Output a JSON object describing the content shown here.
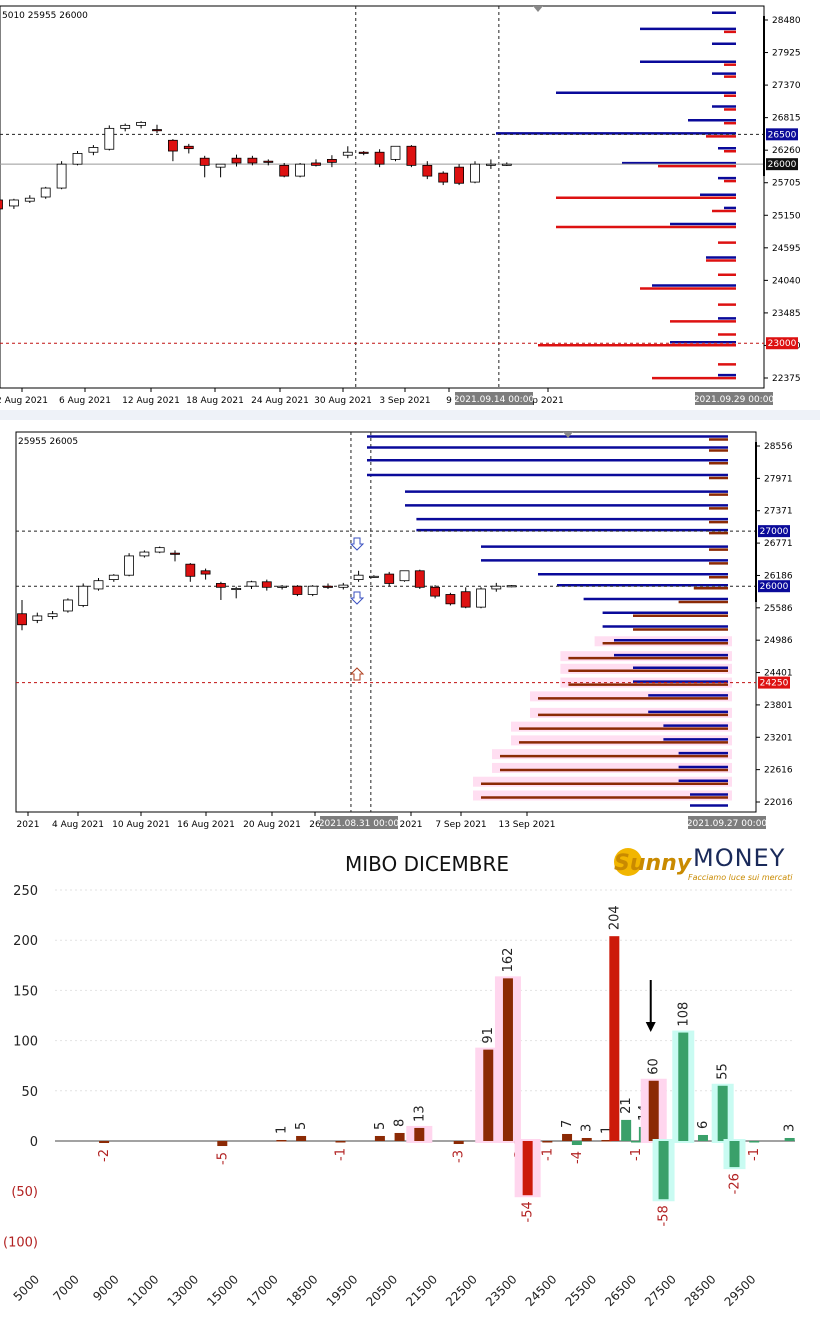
{
  "colors": {
    "bull_line": "#0a0a9a",
    "bear_line": "#dd1111",
    "candle_up": "#ffffff",
    "candle_down": "#dd1111",
    "put_bar": "#8b2a05",
    "put_bar_red": "#cc1a0a",
    "call_bar": "#3aa06a",
    "pink_glow": "#ffd6ee",
    "cyan_glow": "#c9fbf2",
    "neg_label": "#b22222",
    "axis_label_neg": "#b22222"
  },
  "chart_data": [
    {
      "type": "candlestick",
      "header": "5010 25955 26000",
      "price_ticks": [
        "28480",
        "27925",
        "27370",
        "26815",
        "26260",
        "25705",
        "25150",
        "24595",
        "24040",
        "23485",
        "22930",
        "22375"
      ],
      "price_range": [
        22250,
        28650
      ],
      "date_ticks": [
        "2 Aug 2021",
        "6 Aug 2021",
        "12 Aug 2021",
        "18 Aug 2021",
        "24 Aug 2021",
        "30 Aug 2021",
        "3 Sep 2021",
        "9",
        "p 2021"
      ],
      "date_badges": [
        "2021.09.14 00:00",
        "2021.09.29 00:00"
      ],
      "price_badges": [
        {
          "label": "26500",
          "price": 26500,
          "color": "#0a0a9a"
        },
        {
          "label": "26000",
          "price": 26000,
          "color": "#111111"
        },
        {
          "label": "23000",
          "price": 23000,
          "color": "#dd1111"
        }
      ],
      "candles": [
        {
          "o": 25400,
          "h": 25450,
          "l": 25200,
          "c": 25250
        },
        {
          "o": 25300,
          "h": 25420,
          "l": 25250,
          "c": 25400
        },
        {
          "o": 25380,
          "h": 25480,
          "l": 25350,
          "c": 25430
        },
        {
          "o": 25450,
          "h": 25620,
          "l": 25420,
          "c": 25600
        },
        {
          "o": 25600,
          "h": 26050,
          "l": 25580,
          "c": 26000
        },
        {
          "o": 26000,
          "h": 26220,
          "l": 25980,
          "c": 26180
        },
        {
          "o": 26200,
          "h": 26320,
          "l": 26150,
          "c": 26280
        },
        {
          "o": 26250,
          "h": 26650,
          "l": 26230,
          "c": 26600
        },
        {
          "o": 26600,
          "h": 26680,
          "l": 26550,
          "c": 26650
        },
        {
          "o": 26650,
          "h": 26720,
          "l": 26600,
          "c": 26700
        },
        {
          "o": 26580,
          "h": 26660,
          "l": 26520,
          "c": 26560
        },
        {
          "o": 26400,
          "h": 26420,
          "l": 26050,
          "c": 26220
        },
        {
          "o": 26300,
          "h": 26340,
          "l": 26180,
          "c": 26260
        },
        {
          "o": 26100,
          "h": 26140,
          "l": 25780,
          "c": 25980
        },
        {
          "o": 25950,
          "h": 26000,
          "l": 25780,
          "c": 26000
        },
        {
          "o": 26100,
          "h": 26160,
          "l": 25960,
          "c": 26020
        },
        {
          "o": 26100,
          "h": 26140,
          "l": 25980,
          "c": 26020
        },
        {
          "o": 26050,
          "h": 26080,
          "l": 25980,
          "c": 26030
        },
        {
          "o": 25980,
          "h": 26020,
          "l": 25780,
          "c": 25800
        },
        {
          "o": 25800,
          "h": 26020,
          "l": 25780,
          "c": 26000
        },
        {
          "o": 26020,
          "h": 26080,
          "l": 25960,
          "c": 25980
        },
        {
          "o": 26080,
          "h": 26150,
          "l": 25950,
          "c": 26030
        },
        {
          "o": 26150,
          "h": 26300,
          "l": 26100,
          "c": 26200
        },
        {
          "o": 26200,
          "h": 26220,
          "l": 26150,
          "c": 26180
        },
        {
          "o": 26200,
          "h": 26250,
          "l": 25950,
          "c": 26000
        },
        {
          "o": 26080,
          "h": 26300,
          "l": 26050,
          "c": 26300
        },
        {
          "o": 26300,
          "h": 26320,
          "l": 25950,
          "c": 25980
        },
        {
          "o": 25980,
          "h": 26050,
          "l": 25750,
          "c": 25800
        },
        {
          "o": 25850,
          "h": 25880,
          "l": 25650,
          "c": 25700
        },
        {
          "o": 25950,
          "h": 26000,
          "l": 25650,
          "c": 25680
        },
        {
          "o": 25700,
          "h": 26050,
          "l": 25680,
          "c": 26000
        },
        {
          "o": 25980,
          "h": 26080,
          "l": 25920,
          "c": 26000
        },
        {
          "o": 26000,
          "h": 26030,
          "l": 25970,
          "c": 26000
        }
      ],
      "vlines_index": [
        22.5,
        31.5
      ],
      "levels": [
        {
          "price": 28520,
          "blue": 0.04,
          "red": 0.0
        },
        {
          "price": 28250,
          "blue": 0.16,
          "red": 0.02
        },
        {
          "price": 28000,
          "blue": 0.04,
          "red": 0.0
        },
        {
          "price": 27700,
          "blue": 0.16,
          "red": 0.02
        },
        {
          "price": 27500,
          "blue": 0.04,
          "red": 0.02
        },
        {
          "price": 27180,
          "blue": 0.3,
          "red": 0.02
        },
        {
          "price": 26950,
          "blue": 0.04,
          "red": 0.02
        },
        {
          "price": 26720,
          "blue": 0.08,
          "red": 0.02
        },
        {
          "price": 26500,
          "blue": 0.4,
          "red": 0.05
        },
        {
          "price": 26250,
          "blue": 0.03,
          "red": 0.02
        },
        {
          "price": 26000,
          "blue": 0.19,
          "red": 0.13
        },
        {
          "price": 25750,
          "blue": 0.03,
          "red": 0.02
        },
        {
          "price": 25470,
          "blue": 0.06,
          "red": 0.3
        },
        {
          "price": 25250,
          "blue": 0.02,
          "red": 0.04
        },
        {
          "price": 24980,
          "blue": 0.11,
          "red": 0.3
        },
        {
          "price": 24720,
          "blue": 0.0,
          "red": 0.03
        },
        {
          "price": 24420,
          "blue": 0.05,
          "red": 0.05
        },
        {
          "price": 24180,
          "blue": 0.0,
          "red": 0.03
        },
        {
          "price": 23950,
          "blue": 0.14,
          "red": 0.16
        },
        {
          "price": 23680,
          "blue": 0.0,
          "red": 0.03
        },
        {
          "price": 23400,
          "blue": 0.03,
          "red": 0.11
        },
        {
          "price": 23180,
          "blue": 0.0,
          "red": 0.03
        },
        {
          "price": 23000,
          "blue": 0.11,
          "red": 0.33
        },
        {
          "price": 22680,
          "blue": 0.0,
          "red": 0.03
        },
        {
          "price": 22450,
          "blue": 0.03,
          "red": 0.14
        }
      ]
    },
    {
      "type": "candlestick",
      "header": "25955 26005",
      "price_ticks": [
        "28556",
        "27971",
        "27371",
        "26771",
        "26186",
        "25586",
        "24986",
        "24401",
        "23801",
        "23201",
        "22616",
        "22016"
      ],
      "price_range": [
        21900,
        28800
      ],
      "date_ticks": [
        "2021",
        "4 Aug 2021",
        "10 Aug 2021",
        "16 Aug 2021",
        "20 Aug 2021",
        "26",
        "2021",
        "7 Sep 2021",
        "13 Sep 2021"
      ],
      "date_badges": [
        "2021.08.31 00:00",
        "2021.09.27 00:00"
      ],
      "price_badges": [
        {
          "label": "27000",
          "price": 27000,
          "color": "#0a0a9a"
        },
        {
          "label": "26000",
          "price": 26000,
          "color": "#0a0a9a"
        },
        {
          "label": "24250",
          "price": 24250,
          "color": "#dd1111"
        }
      ],
      "candles": [
        {
          "o": 25500,
          "h": 25750,
          "l": 25200,
          "c": 25300
        },
        {
          "o": 25380,
          "h": 25520,
          "l": 25330,
          "c": 25460
        },
        {
          "o": 25450,
          "h": 25550,
          "l": 25400,
          "c": 25500
        },
        {
          "o": 25550,
          "h": 25780,
          "l": 25520,
          "c": 25750
        },
        {
          "o": 25650,
          "h": 26050,
          "l": 25620,
          "c": 26000
        },
        {
          "o": 25950,
          "h": 26150,
          "l": 25920,
          "c": 26100
        },
        {
          "o": 26120,
          "h": 26220,
          "l": 26080,
          "c": 26200
        },
        {
          "o": 26200,
          "h": 26600,
          "l": 26180,
          "c": 26550
        },
        {
          "o": 26550,
          "h": 26650,
          "l": 26520,
          "c": 26620
        },
        {
          "o": 26620,
          "h": 26720,
          "l": 26600,
          "c": 26700
        },
        {
          "o": 26600,
          "h": 26650,
          "l": 26450,
          "c": 26580
        },
        {
          "o": 26400,
          "h": 26420,
          "l": 26080,
          "c": 26180
        },
        {
          "o": 26280,
          "h": 26320,
          "l": 26120,
          "c": 26220
        },
        {
          "o": 26050,
          "h": 26080,
          "l": 25750,
          "c": 25980
        },
        {
          "o": 25950,
          "h": 25990,
          "l": 25780,
          "c": 25960
        },
        {
          "o": 26000,
          "h": 26100,
          "l": 25950,
          "c": 26080
        },
        {
          "o": 26080,
          "h": 26120,
          "l": 25920,
          "c": 25980
        },
        {
          "o": 25980,
          "h": 26020,
          "l": 25940,
          "c": 26000
        },
        {
          "o": 26000,
          "h": 26020,
          "l": 25820,
          "c": 25850
        },
        {
          "o": 25850,
          "h": 26020,
          "l": 25820,
          "c": 26000
        },
        {
          "o": 26000,
          "h": 26050,
          "l": 25950,
          "c": 25980
        },
        {
          "o": 25980,
          "h": 26060,
          "l": 25940,
          "c": 26020
        },
        {
          "o": 26120,
          "h": 26280,
          "l": 26080,
          "c": 26200
        },
        {
          "o": 26180,
          "h": 26200,
          "l": 26150,
          "c": 26180
        },
        {
          "o": 26220,
          "h": 26260,
          "l": 26000,
          "c": 26050
        },
        {
          "o": 26100,
          "h": 26280,
          "l": 26080,
          "c": 26280
        },
        {
          "o": 26280,
          "h": 26300,
          "l": 25950,
          "c": 25980
        },
        {
          "o": 25980,
          "h": 26020,
          "l": 25780,
          "c": 25820
        },
        {
          "o": 25850,
          "h": 25880,
          "l": 25650,
          "c": 25680
        },
        {
          "o": 25900,
          "h": 25980,
          "l": 25600,
          "c": 25620
        },
        {
          "o": 25620,
          "h": 25980,
          "l": 25600,
          "c": 25950
        },
        {
          "o": 25950,
          "h": 26060,
          "l": 25900,
          "c": 26000
        },
        {
          "o": 26000,
          "h": 26020,
          "l": 25980,
          "c": 26010
        }
      ],
      "vlines_index": [
        21.5,
        22.8
      ],
      "levels": [
        {
          "price": 28700,
          "blue": 0.95,
          "red": 0.05
        },
        {
          "price": 28500,
          "blue": 0.95,
          "red": 0.05
        },
        {
          "price": 28270,
          "blue": 0.95,
          "red": 0.05
        },
        {
          "price": 28000,
          "blue": 0.95,
          "red": 0.05
        },
        {
          "price": 27700,
          "blue": 0.85,
          "red": 0.05
        },
        {
          "price": 27450,
          "blue": 0.85,
          "red": 0.05
        },
        {
          "price": 27200,
          "blue": 0.82,
          "red": 0.05
        },
        {
          "price": 27000,
          "blue": 0.82,
          "red": 0.05
        },
        {
          "price": 26700,
          "blue": 0.65,
          "red": 0.05
        },
        {
          "price": 26450,
          "blue": 0.65,
          "red": 0.05
        },
        {
          "price": 26200,
          "blue": 0.5,
          "red": 0.05
        },
        {
          "price": 26000,
          "blue": 0.45,
          "red": 0.09
        },
        {
          "price": 25750,
          "blue": 0.38,
          "red": 0.13
        },
        {
          "price": 25500,
          "blue": 0.33,
          "red": 0.25
        },
        {
          "price": 25250,
          "blue": 0.33,
          "red": 0.25
        },
        {
          "price": 25000,
          "blue": 0.3,
          "red": 0.33
        },
        {
          "price": 24730,
          "blue": 0.3,
          "red": 0.42
        },
        {
          "price": 24500,
          "blue": 0.25,
          "red": 0.42
        },
        {
          "price": 24250,
          "blue": 0.25,
          "red": 0.42
        },
        {
          "price": 24000,
          "blue": 0.21,
          "red": 0.5
        },
        {
          "price": 23700,
          "blue": 0.21,
          "red": 0.5
        },
        {
          "price": 23450,
          "blue": 0.17,
          "red": 0.55
        },
        {
          "price": 23200,
          "blue": 0.17,
          "red": 0.55
        },
        {
          "price": 22950,
          "blue": 0.13,
          "red": 0.6
        },
        {
          "price": 22700,
          "blue": 0.13,
          "red": 0.6
        },
        {
          "price": 22450,
          "blue": 0.13,
          "red": 0.65
        },
        {
          "price": 22200,
          "blue": 0.1,
          "red": 0.65
        },
        {
          "price": 22000,
          "blue": 0.1,
          "red": 0.0
        }
      ]
    },
    {
      "type": "bar",
      "title": "MIBO DICEMBRE",
      "y_ticks": [
        "250",
        "200",
        "150",
        "100",
        "50",
        "0",
        "(50)",
        "(100)"
      ],
      "ylim": [
        -100,
        250
      ],
      "x_ticks": [
        "5000",
        "7000",
        "9000",
        "11000",
        "13000",
        "15000",
        "17000",
        "18500",
        "19500",
        "20500",
        "21500",
        "22500",
        "23500",
        "24500",
        "25500",
        "26500",
        "27500",
        "28500",
        "29500"
      ],
      "bars": [
        {
          "slot": 3.0,
          "value": -2,
          "label": "-2",
          "kind": "put"
        },
        {
          "slot": 9.0,
          "value": -5,
          "label": "-5",
          "kind": "put"
        },
        {
          "slot": 12.0,
          "value": 1,
          "label": "1",
          "kind": "put"
        },
        {
          "slot": 13.0,
          "value": 5,
          "label": "5",
          "kind": "put"
        },
        {
          "slot": 15.0,
          "value": -1,
          "label": "-1",
          "kind": "put"
        },
        {
          "slot": 17.0,
          "value": 5,
          "label": "5",
          "kind": "put"
        },
        {
          "slot": 18.0,
          "value": 8,
          "label": "8",
          "kind": "put"
        },
        {
          "slot": 19.0,
          "value": 13,
          "label": "13",
          "kind": "put",
          "glow": true
        },
        {
          "slot": 21.0,
          "value": -3,
          "label": "-3",
          "kind": "put"
        },
        {
          "slot": 22.5,
          "value": 91,
          "label": "91",
          "kind": "put",
          "glow": true
        },
        {
          "slot": 23.5,
          "value": 162,
          "label": "162",
          "kind": "put",
          "glow": true
        },
        {
          "slot": 24.1,
          "value": -3,
          "label": "-3",
          "kind": "put"
        },
        {
          "slot": 24.5,
          "value": -54,
          "label": "-54",
          "kind": "put_red",
          "glow": true
        },
        {
          "slot": 25.5,
          "value": -1,
          "label": "-1",
          "kind": "put"
        },
        {
          "slot": 26.5,
          "value": 7,
          "label": "7",
          "kind": "put"
        },
        {
          "slot": 27.0,
          "value": -4,
          "label": "-4",
          "kind": "call"
        },
        {
          "slot": 27.5,
          "value": 3,
          "label": "3",
          "kind": "put"
        },
        {
          "slot": 28.5,
          "value": 1,
          "label": "1",
          "kind": "put"
        },
        {
          "slot": 28.9,
          "value": 204,
          "label": "204",
          "kind": "put_red"
        },
        {
          "slot": 29.5,
          "value": 21,
          "label": "21",
          "kind": "call"
        },
        {
          "slot": 30.0,
          "value": -1,
          "label": "-1",
          "kind": "call"
        },
        {
          "slot": 30.4,
          "value": 14,
          "label": "14",
          "kind": "call"
        },
        {
          "slot": 30.9,
          "value": 60,
          "label": "60",
          "kind": "put",
          "glow": true
        },
        {
          "slot": 31.4,
          "value": -58,
          "label": "-58",
          "kind": "call",
          "cyan": true
        },
        {
          "slot": 32.4,
          "value": 108,
          "label": "108",
          "kind": "call",
          "cyan": true
        },
        {
          "slot": 33.4,
          "value": 6,
          "label": "6",
          "kind": "call"
        },
        {
          "slot": 34.4,
          "value": 55,
          "label": "55",
          "kind": "call",
          "cyan": true
        },
        {
          "slot": 35.0,
          "value": -26,
          "label": "-26",
          "kind": "call",
          "cyan": true
        },
        {
          "slot": 36.0,
          "value": -1,
          "label": "-1",
          "kind": "call"
        },
        {
          "slot": 37.8,
          "value": 3,
          "label": "3",
          "kind": "call"
        }
      ],
      "arrow_slot": 30.9
    }
  ],
  "logo": {
    "script_text": "Sunny",
    "brand_text": "MONEY",
    "tagline": "Facciamo luce sui mercati"
  }
}
